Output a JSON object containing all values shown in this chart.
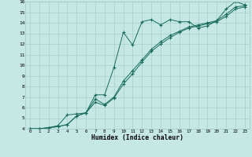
{
  "title": "",
  "xlabel": "Humidex (Indice chaleur)",
  "ylabel": "",
  "xlim": [
    -0.5,
    23.5
  ],
  "ylim": [
    4,
    16
  ],
  "xticks": [
    0,
    1,
    2,
    3,
    4,
    5,
    6,
    7,
    8,
    9,
    10,
    11,
    12,
    13,
    14,
    15,
    16,
    17,
    18,
    19,
    20,
    21,
    22,
    23
  ],
  "yticks": [
    4,
    5,
    6,
    7,
    8,
    9,
    10,
    11,
    12,
    13,
    14,
    15,
    16
  ],
  "line_color": "#1a6b5e",
  "bg_color": "#c5e8e5",
  "grid_color": "#a0c8c4",
  "line1_x": [
    0,
    1,
    2,
    3,
    4,
    5,
    6,
    7,
    8,
    9,
    10,
    11,
    12,
    13,
    14,
    15,
    16,
    17,
    18,
    19,
    20,
    21,
    22,
    23
  ],
  "line1_y": [
    4.0,
    4.0,
    4.1,
    4.3,
    5.3,
    5.4,
    5.5,
    7.2,
    7.2,
    9.8,
    13.1,
    11.9,
    14.1,
    14.3,
    13.8,
    14.3,
    14.1,
    14.1,
    13.5,
    13.7,
    14.2,
    15.3,
    16.0,
    15.7
  ],
  "line2_x": [
    0,
    1,
    2,
    3,
    4,
    5,
    6,
    7,
    8,
    9,
    10,
    11,
    12,
    13,
    14,
    15,
    16,
    17,
    18,
    19,
    20,
    21,
    22,
    23
  ],
  "line2_y": [
    4.0,
    4.0,
    4.1,
    4.2,
    4.4,
    5.2,
    5.5,
    6.8,
    6.3,
    7.0,
    8.5,
    9.5,
    10.5,
    11.5,
    12.2,
    12.8,
    13.2,
    13.6,
    13.8,
    14.0,
    14.2,
    14.8,
    15.5,
    15.6
  ],
  "line3_x": [
    0,
    1,
    2,
    3,
    4,
    5,
    6,
    7,
    8,
    9,
    10,
    11,
    12,
    13,
    14,
    15,
    16,
    17,
    18,
    19,
    20,
    21,
    22,
    23
  ],
  "line3_y": [
    4.0,
    4.0,
    4.1,
    4.2,
    4.4,
    5.2,
    5.5,
    6.5,
    6.2,
    6.9,
    8.2,
    9.2,
    10.3,
    11.3,
    12.0,
    12.6,
    13.1,
    13.5,
    13.7,
    13.9,
    14.1,
    14.6,
    15.3,
    15.5
  ]
}
